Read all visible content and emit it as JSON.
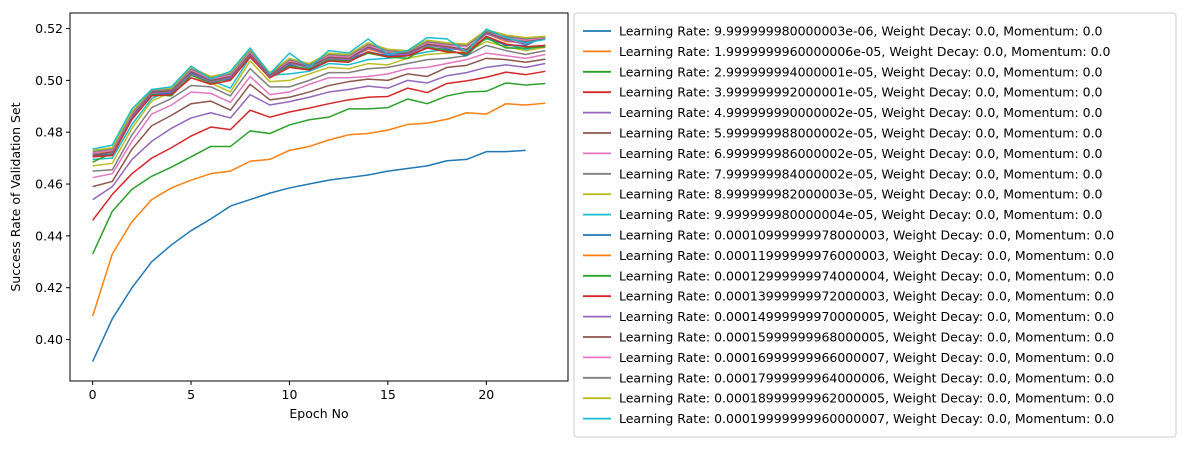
{
  "chart_data": {
    "type": "line",
    "xlabel": "Epoch No",
    "ylabel": "Success Rate of Validation Set",
    "xlim": [
      -1.15,
      24.15
    ],
    "ylim": [
      0.384,
      0.526
    ],
    "xticks": [
      0,
      5,
      10,
      15,
      20
    ],
    "yticks": [
      0.4,
      0.42,
      0.44,
      0.46,
      0.48,
      0.5,
      0.52
    ],
    "ytick_labels": [
      "0.40",
      "0.42",
      "0.44",
      "0.46",
      "0.48",
      "0.50",
      "0.52"
    ],
    "grid": false,
    "legend_position": "outside-right",
    "series": [
      {
        "name": "Learning Rate: 9.999999980000003e-06, Weight Decay: 0.0, Momentum: 0.0",
        "color": "#1f77b4",
        "values": [
          0.3915,
          0.408,
          0.42,
          0.43,
          0.4365,
          0.442,
          0.4465,
          0.4515,
          0.454,
          0.4565,
          0.4585,
          0.46,
          0.4615,
          0.4625,
          0.4635,
          0.465,
          0.466,
          0.467,
          0.469,
          0.4695,
          0.4725,
          0.4725,
          0.473
        ]
      },
      {
        "name": "Learning Rate: 1.9999999960000006e-05, Weight Decay: 0.0, Momentum: 0.0",
        "color": "#ff7f0e",
        "values": [
          0.409,
          0.433,
          0.4455,
          0.454,
          0.4585,
          0.4615,
          0.464,
          0.465,
          0.4688,
          0.4695,
          0.473,
          0.4745,
          0.477,
          0.479,
          0.4795,
          0.4808,
          0.483,
          0.4835,
          0.485,
          0.4875,
          0.487,
          0.491,
          0.4905,
          0.4912
        ]
      },
      {
        "name": "Learning Rate: 2.999999994000001e-05, Weight Decay: 0.0, Momentum: 0.0",
        "color": "#2ca02c",
        "values": [
          0.433,
          0.4495,
          0.458,
          0.463,
          0.4665,
          0.4705,
          0.4745,
          0.4745,
          0.4805,
          0.4795,
          0.4828,
          0.4848,
          0.4858,
          0.489,
          0.489,
          0.4895,
          0.4928,
          0.491,
          0.494,
          0.4955,
          0.4958,
          0.499,
          0.4982,
          0.4988
        ]
      },
      {
        "name": "Learning Rate: 3.999999992000001e-05, Weight Decay: 0.0, Momentum: 0.0",
        "color": "#d62728",
        "values": [
          0.446,
          0.456,
          0.464,
          0.47,
          0.474,
          0.4785,
          0.482,
          0.481,
          0.4885,
          0.4858,
          0.4878,
          0.4893,
          0.491,
          0.4925,
          0.4935,
          0.4938,
          0.497,
          0.4953,
          0.4988,
          0.4998,
          0.5012,
          0.5032,
          0.5022,
          0.5035
        ]
      },
      {
        "name": "Learning Rate: 4.999999990000002e-05, Weight Decay: 0.0, Momentum: 0.0",
        "color": "#9467bd",
        "values": [
          0.454,
          0.459,
          0.4695,
          0.4765,
          0.4815,
          0.4855,
          0.4875,
          0.4855,
          0.4945,
          0.4905,
          0.4918,
          0.4935,
          0.4955,
          0.4965,
          0.4978,
          0.497,
          0.5,
          0.499,
          0.5018,
          0.503,
          0.505,
          0.506,
          0.505,
          0.5065
        ]
      },
      {
        "name": "Learning Rate: 5.999999988000002e-05, Weight Decay: 0.0, Momentum: 0.0",
        "color": "#8c564b",
        "values": [
          0.459,
          0.461,
          0.4735,
          0.4825,
          0.4865,
          0.491,
          0.492,
          0.4885,
          0.4985,
          0.4925,
          0.4935,
          0.4955,
          0.498,
          0.4995,
          0.5005,
          0.5,
          0.5025,
          0.5015,
          0.505,
          0.5058,
          0.5085,
          0.508,
          0.507,
          0.5082
        ]
      },
      {
        "name": "Learning Rate: 6.999999986000002e-05, Weight Decay: 0.0, Momentum: 0.0",
        "color": "#e377c2",
        "values": [
          0.4625,
          0.464,
          0.4765,
          0.487,
          0.4905,
          0.4955,
          0.495,
          0.4915,
          0.5015,
          0.4945,
          0.4955,
          0.4985,
          0.501,
          0.501,
          0.5015,
          0.5025,
          0.5045,
          0.505,
          0.5065,
          0.508,
          0.5105,
          0.5095,
          0.5085,
          0.51
        ]
      },
      {
        "name": "Learning Rate: 7.999999984000002e-05, Weight Decay: 0.0, Momentum: 0.0",
        "color": "#7f7f7f",
        "values": [
          0.465,
          0.4655,
          0.479,
          0.4895,
          0.493,
          0.498,
          0.4975,
          0.494,
          0.5045,
          0.4975,
          0.4975,
          0.5,
          0.503,
          0.503,
          0.5045,
          0.505,
          0.5065,
          0.508,
          0.5085,
          0.5095,
          0.5135,
          0.5115,
          0.51,
          0.5115
        ]
      },
      {
        "name": "Learning Rate: 8.999999982000003e-05, Weight Decay: 0.0, Momentum: 0.0",
        "color": "#bcbd22",
        "values": [
          0.467,
          0.468,
          0.4815,
          0.492,
          0.4955,
          0.501,
          0.499,
          0.4955,
          0.5075,
          0.4995,
          0.5,
          0.5025,
          0.505,
          0.5045,
          0.5065,
          0.506,
          0.5085,
          0.51,
          0.5105,
          0.511,
          0.515,
          0.513,
          0.5115,
          0.5128
        ]
      },
      {
        "name": "Learning Rate: 9.999999980000004e-05, Weight Decay: 0.0, Momentum: 0.0",
        "color": "#17becf",
        "values": [
          0.4695,
          0.47,
          0.483,
          0.493,
          0.4965,
          0.502,
          0.5,
          0.497,
          0.509,
          0.502,
          0.5025,
          0.5035,
          0.5065,
          0.506,
          0.508,
          0.5085,
          0.5095,
          0.511,
          0.512,
          0.512,
          0.516,
          0.514,
          0.512,
          0.5135
        ]
      },
      {
        "name": "Learning Rate: 0.00010999999978000003, Weight Decay: 0.0, Momentum: 0.0",
        "color": "#1f77b4",
        "values": [
          0.471,
          0.4715,
          0.4855,
          0.4945,
          0.495,
          0.503,
          0.4995,
          0.5005,
          0.51,
          0.5015,
          0.506,
          0.504,
          0.5075,
          0.508,
          0.511,
          0.5095,
          0.5095,
          0.5125,
          0.512,
          0.5095,
          0.517,
          0.5135,
          0.5135,
          0.517
        ]
      },
      {
        "name": "Learning Rate: 0.00011999999976000003, Weight Decay: 0.0, Momentum: 0.0",
        "color": "#ff7f0e",
        "values": [
          0.472,
          0.4725,
          0.4865,
          0.495,
          0.496,
          0.504,
          0.5005,
          0.5015,
          0.5105,
          0.502,
          0.5075,
          0.505,
          0.5085,
          0.5085,
          0.512,
          0.51,
          0.5105,
          0.514,
          0.513,
          0.511,
          0.518,
          0.515,
          0.5145,
          0.516
        ]
      },
      {
        "name": "Learning Rate: 0.00012999999974000004, Weight Decay: 0.0, Momentum: 0.0",
        "color": "#2ca02c",
        "values": [
          0.4685,
          0.472,
          0.487,
          0.4945,
          0.494,
          0.502,
          0.499,
          0.501,
          0.5095,
          0.501,
          0.5055,
          0.5045,
          0.508,
          0.5075,
          0.5105,
          0.509,
          0.5085,
          0.513,
          0.5115,
          0.51,
          0.5165,
          0.5125,
          0.5125,
          0.513
        ]
      },
      {
        "name": "Learning Rate: 0.00013999999972000003, Weight Decay: 0.0, Momentum: 0.0",
        "color": "#d62728",
        "values": [
          0.4705,
          0.471,
          0.485,
          0.494,
          0.4945,
          0.501,
          0.4985,
          0.5,
          0.509,
          0.501,
          0.505,
          0.504,
          0.5075,
          0.507,
          0.511,
          0.509,
          0.5095,
          0.5125,
          0.511,
          0.5105,
          0.517,
          0.514,
          0.513,
          0.5135
        ]
      },
      {
        "name": "Learning Rate: 0.00014999999970000005, Weight Decay: 0.0, Momentum: 0.0",
        "color": "#9467bd",
        "values": [
          0.4715,
          0.472,
          0.486,
          0.495,
          0.4955,
          0.5025,
          0.4995,
          0.501,
          0.51,
          0.5015,
          0.5065,
          0.505,
          0.5085,
          0.508,
          0.5125,
          0.51,
          0.51,
          0.5135,
          0.5125,
          0.5115,
          0.518,
          0.5155,
          0.514,
          0.5165
        ]
      },
      {
        "name": "Learning Rate: 0.00015999999968000005, Weight Decay: 0.0, Momentum: 0.0",
        "color": "#8c564b",
        "values": [
          0.471,
          0.4725,
          0.4865,
          0.4955,
          0.496,
          0.5035,
          0.5,
          0.5015,
          0.5105,
          0.502,
          0.507,
          0.5055,
          0.509,
          0.5085,
          0.513,
          0.5105,
          0.5105,
          0.514,
          0.513,
          0.512,
          0.5185,
          0.516,
          0.515,
          0.516
        ]
      },
      {
        "name": "Learning Rate: 0.00016999999966000007, Weight Decay: 0.0, Momentum: 0.0",
        "color": "#e377c2",
        "values": [
          0.472,
          0.473,
          0.487,
          0.496,
          0.4965,
          0.504,
          0.5005,
          0.502,
          0.511,
          0.5025,
          0.5075,
          0.506,
          0.5095,
          0.509,
          0.5135,
          0.511,
          0.511,
          0.5145,
          0.5135,
          0.513,
          0.519,
          0.5165,
          0.5155,
          0.5165
        ]
      },
      {
        "name": "Learning Rate: 0.00017999999964000006, Weight Decay: 0.0, Momentum: 0.0",
        "color": "#7f7f7f",
        "values": [
          0.4725,
          0.4735,
          0.4875,
          0.496,
          0.4965,
          0.5045,
          0.501,
          0.5025,
          0.5115,
          0.5025,
          0.508,
          0.506,
          0.51,
          0.5095,
          0.514,
          0.5115,
          0.511,
          0.515,
          0.514,
          0.5135,
          0.519,
          0.517,
          0.516,
          0.5168
        ]
      },
      {
        "name": "Learning Rate: 0.00018999999962000005, Weight Decay: 0.0, Momentum: 0.0",
        "color": "#bcbd22",
        "values": [
          0.473,
          0.474,
          0.488,
          0.4965,
          0.497,
          0.505,
          0.5015,
          0.503,
          0.512,
          0.503,
          0.5085,
          0.5065,
          0.5105,
          0.51,
          0.5145,
          0.512,
          0.5115,
          0.5155,
          0.5145,
          0.514,
          0.5195,
          0.5175,
          0.5165,
          0.517
        ]
      },
      {
        "name": "Learning Rate: 0.00019999999960000007, Weight Decay: 0.0, Momentum: 0.0",
        "color": "#17becf",
        "values": [
          0.4735,
          0.475,
          0.489,
          0.4965,
          0.4975,
          0.5055,
          0.5005,
          0.5035,
          0.5125,
          0.5025,
          0.5105,
          0.505,
          0.5115,
          0.5105,
          0.516,
          0.51,
          0.5115,
          0.5165,
          0.516,
          0.511,
          0.5198,
          0.5165,
          0.5145,
          0.5158
        ]
      }
    ]
  }
}
